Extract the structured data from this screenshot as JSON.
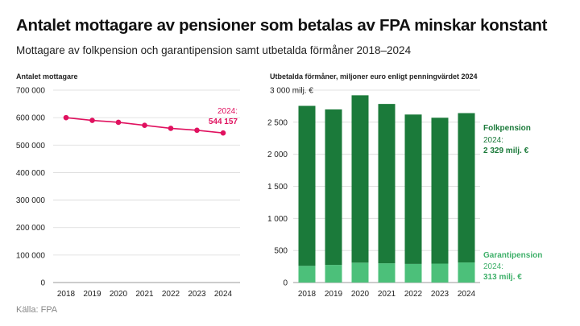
{
  "title": "Antalet mottagare av pensioner som betalas av FPA minskar konstant",
  "subtitle": "Mottagare av folkpension och garantipension samt utbetalda förmåner 2018–2024",
  "source": "Källa: FPA",
  "colors": {
    "line": "#e0115f",
    "folkpension": "#1b7a3a",
    "garantipension": "#4cc07a",
    "folk_label": "#1b7a3a",
    "garanti_label": "#3fb06a"
  },
  "chart_data": [
    {
      "type": "line",
      "ylabel": "Antalet mottagare",
      "x": [
        "2018",
        "2019",
        "2020",
        "2021",
        "2022",
        "2023",
        "2024"
      ],
      "series": [
        {
          "values": [
            600000,
            590000,
            583000,
            572000,
            561000,
            554000,
            544157
          ]
        }
      ],
      "ylim": [
        0,
        700000
      ],
      "yticks": [
        0,
        100000,
        200000,
        300000,
        400000,
        500000,
        600000,
        700000
      ],
      "ytick_labels": [
        "0",
        "100 000",
        "200 000",
        "300 000",
        "400 000",
        "500 000",
        "600 000",
        "700 000"
      ],
      "annotation": {
        "year_label": "2024:",
        "value_label": "544 157"
      }
    },
    {
      "type": "bar",
      "stacked": true,
      "ylabel": "Utbetalda förmåner, miljoner euro enligt penningvärdet 2024",
      "categories": [
        "2018",
        "2019",
        "2020",
        "2021",
        "2022",
        "2023",
        "2024"
      ],
      "series": [
        {
          "name": "Garantipension",
          "values": [
            260,
            275,
            310,
            300,
            290,
            295,
            313
          ]
        },
        {
          "name": "Folkpension",
          "values": [
            2495,
            2425,
            2610,
            2485,
            2330,
            2275,
            2329
          ]
        }
      ],
      "ylim": [
        0,
        3000
      ],
      "yticks": [
        0,
        500,
        1000,
        1500,
        2000,
        2500,
        3000
      ],
      "ytick_labels": [
        "0",
        "500",
        "1 000",
        "1 500",
        "2 000",
        "2 500",
        "3 000 milj. €"
      ],
      "annotations": {
        "folkpension": {
          "label": "Folkpension",
          "year_label": "2024:",
          "value_label": "2 329 milj. €"
        },
        "garantipension": {
          "label": "Garantipension",
          "year_label": "2024:",
          "value_label": "313 milj. €"
        }
      }
    }
  ]
}
